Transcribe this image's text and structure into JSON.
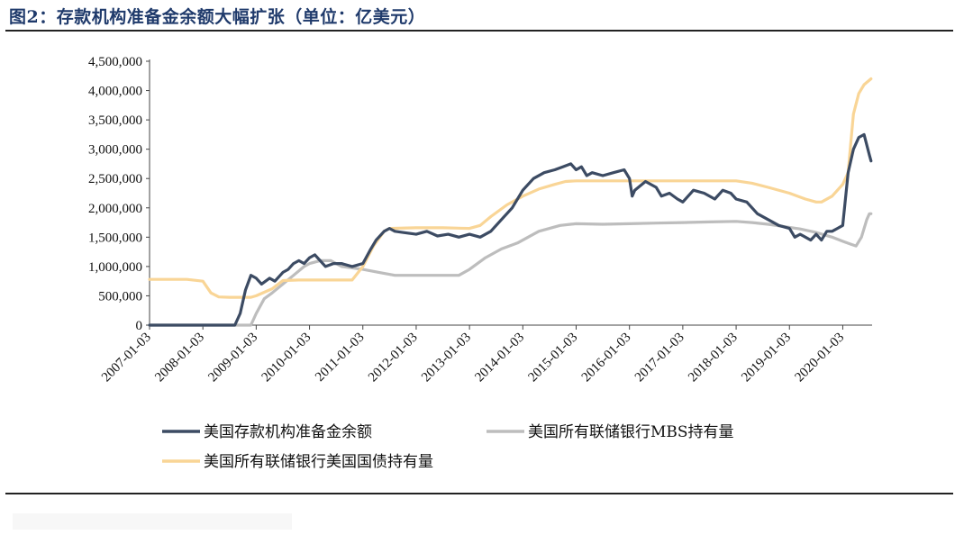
{
  "page": {
    "title": "图2：存款机构准备金余额大幅扩张（单位：亿美元）"
  },
  "colors": {
    "reserves": "#3c4b63",
    "mbs": "#bdbdbd",
    "treasury": "#f9d596"
  },
  "chart_data": {
    "type": "line",
    "title": "存款机构准备金余额大幅扩张（单位：亿美元）",
    "xlabel": "",
    "ylabel": "",
    "ylim": [
      0,
      4500000
    ],
    "yticks": [
      "4,500,000",
      "4,000,000",
      "3,500,000",
      "3,000,000",
      "2,500,000",
      "2,000,000",
      "1,500,000",
      "1,000,000",
      "500,000",
      "0"
    ],
    "ytick_values": [
      4500000,
      4000000,
      3500000,
      3000000,
      2500000,
      2000000,
      1500000,
      1000000,
      500000,
      0
    ],
    "xlim": [
      2007.0,
      2020.55
    ],
    "xticks": [
      "2007-01-03",
      "2008-01-03",
      "2009-01-03",
      "2010-01-03",
      "2011-01-03",
      "2012-01-03",
      "2013-01-03",
      "2014-01-03",
      "2015-01-03",
      "2016-01-03",
      "2017-01-03",
      "2018-01-03",
      "2019-01-03",
      "2020-01-03"
    ],
    "xtick_values": [
      2007,
      2008,
      2009,
      2010,
      2011,
      2012,
      2013,
      2014,
      2015,
      2016,
      2017,
      2018,
      2019,
      2020
    ],
    "grid": false,
    "legend_position": "bottom",
    "series": [
      {
        "name": "美国存款机构准备金余额",
        "color_key": "reserves",
        "x": [
          2007.0,
          2008.0,
          2008.6,
          2008.7,
          2008.8,
          2008.9,
          2009.0,
          2009.1,
          2009.25,
          2009.35,
          2009.5,
          2009.6,
          2009.7,
          2009.8,
          2009.9,
          2010.0,
          2010.1,
          2010.2,
          2010.3,
          2010.45,
          2010.6,
          2010.8,
          2011.0,
          2011.15,
          2011.25,
          2011.4,
          2011.5,
          2011.6,
          2011.75,
          2012.0,
          2012.2,
          2012.4,
          2012.6,
          2012.8,
          2013.0,
          2013.2,
          2013.4,
          2013.6,
          2013.8,
          2014.0,
          2014.2,
          2014.4,
          2014.6,
          2014.75,
          2014.9,
          2015.0,
          2015.1,
          2015.2,
          2015.3,
          2015.5,
          2015.7,
          2015.9,
          2016.0,
          2016.05,
          2016.1,
          2016.3,
          2016.5,
          2016.6,
          2016.75,
          2016.9,
          2017.0,
          2017.2,
          2017.4,
          2017.6,
          2017.75,
          2017.9,
          2018.0,
          2018.2,
          2018.4,
          2018.6,
          2018.8,
          2019.0,
          2019.1,
          2019.2,
          2019.3,
          2019.4,
          2019.5,
          2019.6,
          2019.7,
          2019.8,
          2019.9,
          2020.0,
          2020.1,
          2020.2,
          2020.3,
          2020.4,
          2020.5,
          2020.53
        ],
        "y": [
          0,
          0,
          0,
          200000,
          600000,
          850000,
          800000,
          700000,
          800000,
          750000,
          900000,
          950000,
          1050000,
          1100000,
          1050000,
          1150000,
          1200000,
          1100000,
          1000000,
          1050000,
          1050000,
          1000000,
          1050000,
          1300000,
          1450000,
          1600000,
          1650000,
          1600000,
          1580000,
          1550000,
          1600000,
          1520000,
          1550000,
          1500000,
          1550000,
          1500000,
          1600000,
          1800000,
          2000000,
          2300000,
          2500000,
          2600000,
          2650000,
          2700000,
          2750000,
          2650000,
          2700000,
          2550000,
          2600000,
          2550000,
          2600000,
          2650000,
          2500000,
          2200000,
          2300000,
          2450000,
          2350000,
          2200000,
          2250000,
          2150000,
          2100000,
          2300000,
          2250000,
          2150000,
          2300000,
          2250000,
          2150000,
          2100000,
          1900000,
          1800000,
          1700000,
          1650000,
          1500000,
          1550000,
          1500000,
          1450000,
          1550000,
          1450000,
          1600000,
          1600000,
          1650000,
          1700000,
          2600000,
          3000000,
          3200000,
          3250000,
          2900000,
          2800000
        ]
      },
      {
        "name": "美国所有联储银行MBS持有量",
        "color_key": "mbs",
        "x": [
          2007.0,
          2008.9,
          2009.0,
          2009.15,
          2009.3,
          2009.5,
          2009.7,
          2009.9,
          2010.0,
          2010.2,
          2010.4,
          2010.6,
          2011.0,
          2011.3,
          2011.6,
          2011.9,
          2012.0,
          2012.3,
          2012.6,
          2012.8,
          2013.0,
          2013.3,
          2013.6,
          2013.9,
          2014.1,
          2014.3,
          2014.5,
          2014.7,
          2014.9,
          2015.0,
          2015.5,
          2016.0,
          2016.5,
          2017.0,
          2017.5,
          2018.0,
          2018.3,
          2018.6,
          2018.9,
          2019.2,
          2019.5,
          2019.8,
          2020.0,
          2020.15,
          2020.25,
          2020.35,
          2020.45,
          2020.5,
          2020.53
        ],
        "y": [
          0,
          0,
          200000,
          450000,
          550000,
          700000,
          850000,
          1000000,
          1050000,
          1100000,
          1100000,
          1000000,
          950000,
          900000,
          850000,
          850000,
          850000,
          850000,
          850000,
          850000,
          950000,
          1150000,
          1300000,
          1400000,
          1500000,
          1600000,
          1650000,
          1700000,
          1720000,
          1730000,
          1720000,
          1730000,
          1740000,
          1750000,
          1760000,
          1770000,
          1750000,
          1720000,
          1680000,
          1640000,
          1580000,
          1500000,
          1430000,
          1380000,
          1350000,
          1500000,
          1800000,
          1900000,
          1900000
        ]
      },
      {
        "name": "美国所有联储银行美国国债持有量",
        "color_key": "treasury",
        "x": [
          2007.0,
          2007.7,
          2008.0,
          2008.15,
          2008.3,
          2008.5,
          2008.9,
          2009.0,
          2009.3,
          2009.5,
          2009.8,
          2010.0,
          2010.5,
          2010.8,
          2011.0,
          2011.2,
          2011.4,
          2011.5,
          2012.0,
          2012.5,
          2013.0,
          2013.2,
          2013.4,
          2013.7,
          2014.0,
          2014.3,
          2014.6,
          2014.8,
          2015.0,
          2015.5,
          2016.0,
          2016.5,
          2017.0,
          2017.5,
          2018.0,
          2018.3,
          2018.6,
          2019.0,
          2019.3,
          2019.5,
          2019.6,
          2019.8,
          2020.0,
          2020.1,
          2020.15,
          2020.2,
          2020.3,
          2020.4,
          2020.53
        ],
        "y": [
          780000,
          780000,
          750000,
          550000,
          480000,
          475000,
          475000,
          500000,
          620000,
          760000,
          770000,
          770000,
          770000,
          770000,
          1000000,
          1350000,
          1600000,
          1650000,
          1660000,
          1660000,
          1650000,
          1700000,
          1850000,
          2050000,
          2200000,
          2320000,
          2400000,
          2450000,
          2460000,
          2460000,
          2460000,
          2460000,
          2460000,
          2460000,
          2460000,
          2420000,
          2350000,
          2250000,
          2150000,
          2100000,
          2100000,
          2200000,
          2400000,
          2600000,
          3100000,
          3600000,
          3950000,
          4100000,
          4200000
        ]
      }
    ]
  }
}
